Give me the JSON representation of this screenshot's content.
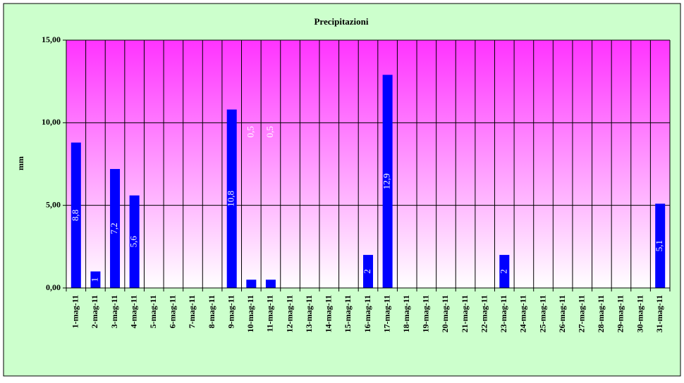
{
  "chart_data": {
    "type": "bar",
    "title": "Precipitazioni",
    "y_label": "mm",
    "categories": [
      "1-mag-11",
      "2-mag-11",
      "3-mag-11",
      "4-mag-11",
      "5-mag-11",
      "6-mag-11",
      "7-mag-11",
      "8-mag-11",
      "9-mag-11",
      "10-mag-11",
      "11-mag-11",
      "12-mag-11",
      "13-mag-11",
      "14-mag-11",
      "15-mag-11",
      "16-mag-11",
      "17-mag-11",
      "18-mag-11",
      "19-mag-11",
      "20-mag-11",
      "21-mag-11",
      "22-mag-11",
      "23-mag-11",
      "24-mag-11",
      "25-mag-11",
      "26-mag-11",
      "27-mag-11",
      "28-mag-11",
      "29-mag-11",
      "30-mag-11",
      "31-mag-11"
    ],
    "values": [
      8.8,
      1,
      7.2,
      5.6,
      0,
      0,
      0,
      0,
      10.8,
      0.5,
      0.5,
      0,
      0,
      0,
      0,
      2,
      12.9,
      0,
      0,
      0,
      0,
      0,
      2,
      0,
      0,
      0,
      0,
      0,
      0,
      0,
      5.1
    ],
    "value_labels": [
      "8,8",
      "1",
      "7,2",
      "5,6",
      null,
      null,
      null,
      null,
      "10,8",
      "0,5",
      "0,5",
      null,
      null,
      null,
      null,
      "2",
      "12,9",
      null,
      null,
      null,
      null,
      null,
      "2",
      null,
      null,
      null,
      null,
      null,
      null,
      null,
      "5,1"
    ],
    "color": "#0000ff",
    "ylim": [
      0,
      15
    ],
    "yticks": [
      {
        "value": 0,
        "label": "0,00"
      },
      {
        "value": 5,
        "label": "5,00"
      },
      {
        "value": 10,
        "label": "10,00"
      },
      {
        "value": 15,
        "label": "15,00"
      }
    ],
    "grid": true
  }
}
